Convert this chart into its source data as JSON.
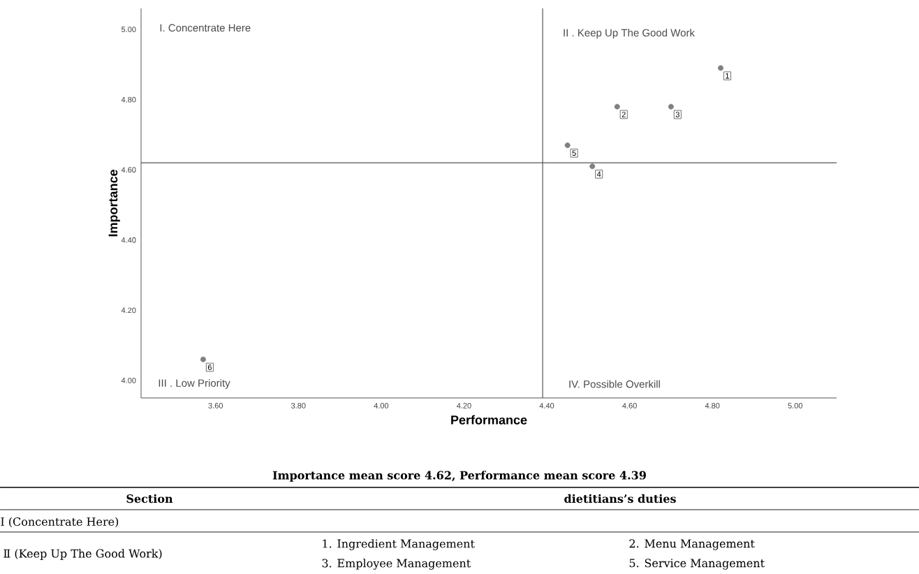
{
  "chart_data": {
    "type": "scatter",
    "xlabel": "Performance",
    "ylabel": "Importance",
    "x": [
      4.82,
      4.57,
      4.7,
      4.51,
      4.45,
      3.57
    ],
    "series": [
      {
        "color": "#808080",
        "values": [
          4.89,
          4.78,
          4.78,
          4.61,
          4.67,
          4.06
        ]
      }
    ],
    "marker": "circle",
    "xlim": [
      3.42,
      5.1
    ],
    "ylim": [
      3.95,
      5.06
    ],
    "xticks": [
      {
        "value": 3.6,
        "label": "3.60"
      },
      {
        "value": 3.8,
        "label": "3.80"
      },
      {
        "value": 4.0,
        "label": "4.00"
      },
      {
        "value": 4.2,
        "label": "4.20"
      },
      {
        "value": 4.4,
        "label": "4.40"
      },
      {
        "value": 4.6,
        "label": "4.60"
      },
      {
        "value": 4.8,
        "label": "4.80"
      },
      {
        "value": 5.0,
        "label": "5.00"
      }
    ],
    "yticks": [
      {
        "value": 4.0,
        "label": "4.00"
      },
      {
        "value": 4.2,
        "label": "4.20"
      },
      {
        "value": 4.4,
        "label": "4.40"
      },
      {
        "value": 4.6,
        "label": "4.60"
      },
      {
        "value": 4.8,
        "label": "4.80"
      },
      {
        "value": 5.0,
        "label": "5.00"
      }
    ],
    "ref_lines": [
      {
        "axis": "x",
        "value": 4.39,
        "color": "#555555"
      },
      {
        "axis": "y",
        "value": 4.62,
        "color": "#555555"
      }
    ],
    "annotations": [
      {
        "text": "1",
        "x": 4.82,
        "y": 4.89
      },
      {
        "text": "2",
        "x": 4.57,
        "y": 4.78
      },
      {
        "text": "3",
        "x": 4.7,
        "y": 4.78
      },
      {
        "text": "4",
        "x": 4.51,
        "y": 4.61
      },
      {
        "text": "5",
        "x": 4.45,
        "y": 4.67
      },
      {
        "text": "6",
        "x": 3.57,
        "y": 4.06
      },
      "I. Concentrate Here",
      "II . Keep Up The Good Work",
      "III . Low Priority",
      "IV. Possible Overkill",
      "Importance mean score 4.62,  Performance mean score 4.39",
      "Section",
      "dietitians’s duties",
      "Ⅰ (Concentrate Here)",
      "Ⅱ (Keep Up The Good Work)",
      "1. Ingredient Management",
      "2. Menu Management",
      "3. Employee Management",
      "5. Service Management"
    ]
  }
}
